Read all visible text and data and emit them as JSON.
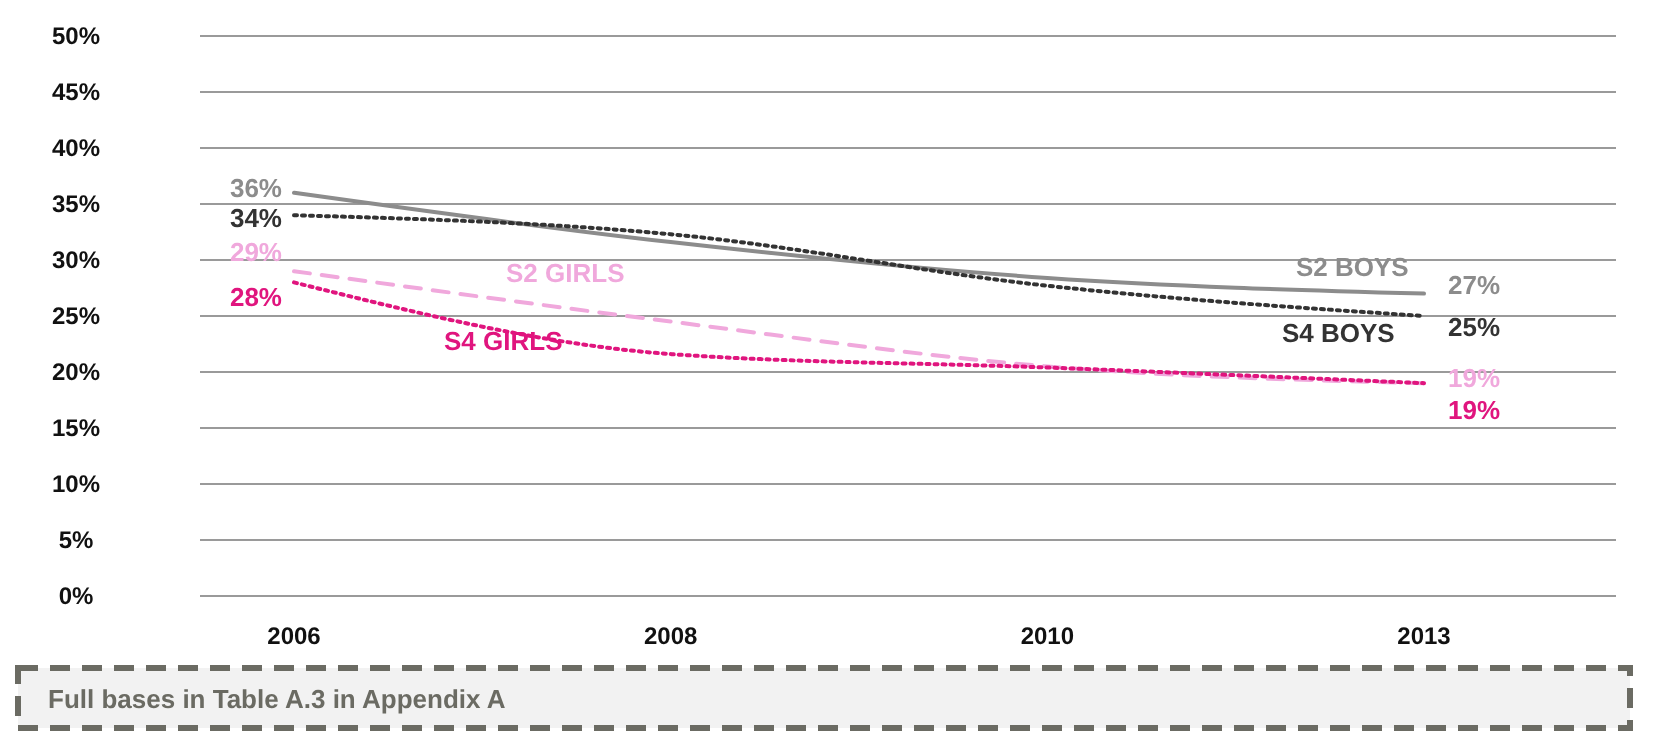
{
  "chart_data": {
    "type": "line",
    "categories": [
      "2006",
      "2008",
      "2010",
      "2013"
    ],
    "series": [
      {
        "name": "S2 BOYS",
        "color": "#8c8c8c",
        "line_style": "solid",
        "values": [
          36,
          31.6,
          28.4,
          27
        ],
        "value_labels": [
          "36%",
          null,
          null,
          "27%"
        ]
      },
      {
        "name": "S4 BOYS",
        "color": "#333333",
        "line_style": "dotted",
        "values": [
          34,
          32.3,
          27.7,
          25
        ],
        "value_labels": [
          "34%",
          null,
          null,
          "25%"
        ]
      },
      {
        "name": "S2 GIRLS",
        "color": "#f0a8dc",
        "line_style": "dashed",
        "values": [
          29,
          24.5,
          20.5,
          19
        ],
        "value_labels": [
          "29%",
          null,
          null,
          "19%"
        ]
      },
      {
        "name": "S4 GIRLS",
        "color": "#e0157e",
        "line_style": "dotted",
        "values": [
          28,
          21.6,
          20.4,
          19
        ],
        "value_labels": [
          "28%",
          null,
          null,
          "19%"
        ]
      }
    ],
    "ylim": [
      0,
      50
    ],
    "yticks": [
      {
        "value": 0,
        "label": "0%"
      },
      {
        "value": 5,
        "label": "5%"
      },
      {
        "value": 10,
        "label": "10%"
      },
      {
        "value": 15,
        "label": "15%"
      },
      {
        "value": 20,
        "label": "20%"
      },
      {
        "value": 25,
        "label": "25%"
      },
      {
        "value": 30,
        "label": "30%"
      },
      {
        "value": 35,
        "label": "35%"
      },
      {
        "value": 40,
        "label": "40%"
      },
      {
        "value": 45,
        "label": "45%"
      },
      {
        "value": 50,
        "label": "50%"
      }
    ],
    "grid": "y",
    "marker": "none",
    "annotations": [
      "Full bases in Table A.3 in Appendix A"
    ]
  }
}
